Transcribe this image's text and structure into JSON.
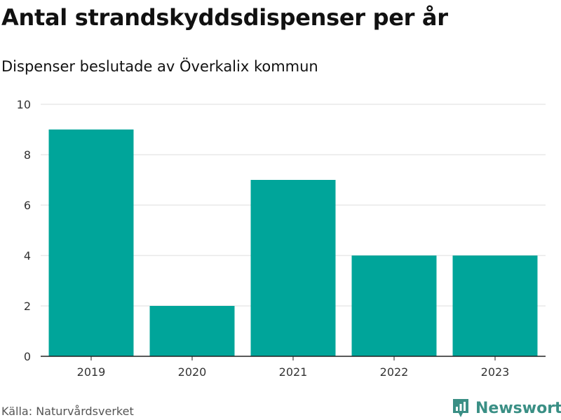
{
  "title": "Antal strandskyddsdispenser per år",
  "subtitle": "Dispenser beslutade av Överkalix kommun",
  "source": "Källa: Naturvårdsverket",
  "brand": {
    "name": "Newsworthy",
    "icon": "newsworthy-logo-icon",
    "color": "#3a8f85"
  },
  "colors": {
    "bar": "#00a59a",
    "grid": "#dddddd",
    "axis": "#222222"
  },
  "chart_data": {
    "type": "bar",
    "title": "Antal strandskyddsdispenser per år",
    "subtitle": "Dispenser beslutade av Överkalix kommun",
    "categories": [
      "2019",
      "2020",
      "2021",
      "2022",
      "2023"
    ],
    "values": [
      9,
      2,
      7,
      4,
      4
    ],
    "xlabel": "",
    "ylabel": "",
    "ylim": [
      0,
      10
    ],
    "yticks": [
      0,
      2,
      4,
      6,
      8,
      10
    ],
    "grid": true,
    "legend": "none"
  }
}
